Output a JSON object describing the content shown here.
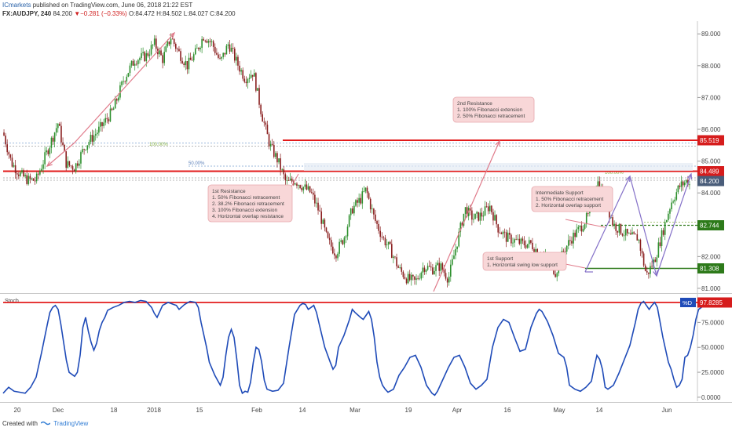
{
  "header": {
    "author": "ICmarkets",
    "published": "published on TradingView.com, June 06, 2018 21:22 EST",
    "symbol": "FX:AUDJPY, 240",
    "last": "84.200",
    "change_symbol": "▼",
    "change": "−0.281 (−0.33%)",
    "ohlc": "O:84.472 H:84.502 L:84.027 C:84.200"
  },
  "footer": {
    "created_with": "Created with",
    "brand": "TradingView"
  },
  "colors": {
    "candle_up": "#2c8f2c",
    "candle_down": "#8a1f1f",
    "resistance_line": "#e21b1b",
    "support_line": "#2d7a1a",
    "stoch_line": "#1f4bb8",
    "fib_text": "#8ab34a",
    "label_bg": "#f8d7d8",
    "arrow_pink": "#e07a8a",
    "arrow_purple": "#8470c8",
    "price_tag_gray": "#4a5d7a",
    "price_tag_red": "#d61c1c",
    "price_tag_green": "#2d7a1a",
    "stoch_tag": "#1f4bb8"
  },
  "chart_data": [
    {
      "type": "candlestick",
      "symbol": "FX:AUDJPY",
      "timeframe": "240",
      "ylim": [
        80.9,
        89.4
      ],
      "y_ticks": [
        81.0,
        82.0,
        83.0,
        84.0,
        85.0,
        86.0,
        87.0,
        88.0,
        89.0
      ],
      "y_tick_labels": [
        "81.000",
        "82.000",
        "83.000",
        "84.000",
        "85.000",
        "86.000",
        "87.000",
        "88.000",
        "89.000"
      ],
      "x_tick_labels": [
        "20",
        "Dec",
        "18",
        "2018",
        "15",
        "Feb",
        "14",
        "Mar",
        "19",
        "Apr",
        "16",
        "May",
        "14",
        "Jun"
      ],
      "close_path": [
        [
          0.0,
          85.9
        ],
        [
          0.03,
          84.95
        ],
        [
          0.06,
          84.6
        ],
        [
          0.09,
          84.4
        ],
        [
          0.12,
          84.4
        ],
        [
          0.16,
          85.3
        ],
        [
          0.2,
          86.2
        ],
        [
          0.23,
          84.9
        ],
        [
          0.26,
          84.8
        ],
        [
          0.3,
          85.5
        ],
        [
          0.35,
          86.0
        ],
        [
          0.4,
          86.6
        ],
        [
          0.44,
          87.6
        ],
        [
          0.48,
          88.2
        ],
        [
          0.52,
          88.3
        ],
        [
          0.55,
          88.7
        ],
        [
          0.58,
          88.2
        ],
        [
          0.61,
          88.9
        ],
        [
          0.64,
          88.4
        ],
        [
          0.67,
          88.0
        ],
        [
          0.7,
          88.4
        ],
        [
          0.73,
          88.95
        ],
        [
          0.76,
          88.7
        ],
        [
          0.79,
          88.1
        ],
        [
          0.82,
          88.7
        ],
        [
          0.85,
          88.1
        ],
        [
          0.88,
          87.6
        ],
        [
          0.91,
          87.8
        ],
        [
          0.94,
          86.5
        ],
        [
          0.97,
          85.5
        ],
        [
          1.0,
          85.0
        ],
        [
          1.03,
          84.3
        ],
        [
          1.06,
          84.4
        ],
        [
          1.09,
          84.2
        ],
        [
          1.12,
          84.0
        ],
        [
          1.15,
          83.4
        ],
        [
          1.18,
          82.5
        ],
        [
          1.21,
          82.1
        ],
        [
          1.24,
          82.6
        ],
        [
          1.27,
          83.5
        ],
        [
          1.3,
          83.8
        ],
        [
          1.32,
          84.1
        ],
        [
          1.35,
          83.2
        ],
        [
          1.38,
          82.6
        ],
        [
          1.41,
          82.2
        ],
        [
          1.44,
          81.6
        ],
        [
          1.47,
          81.3
        ],
        [
          1.5,
          81.2
        ],
        [
          1.53,
          81.7
        ],
        [
          1.56,
          81.6
        ],
        [
          1.59,
          81.7
        ],
        [
          1.62,
          81.3
        ],
        [
          1.65,
          82.4
        ],
        [
          1.68,
          83.5
        ],
        [
          1.71,
          83.2
        ],
        [
          1.74,
          83.3
        ],
        [
          1.77,
          83.6
        ],
        [
          1.8,
          82.9
        ],
        [
          1.83,
          82.6
        ],
        [
          1.86,
          82.5
        ],
        [
          1.89,
          82.4
        ],
        [
          1.92,
          82.4
        ],
        [
          1.95,
          82.1
        ],
        [
          1.98,
          81.9
        ],
        [
          2.01,
          81.5
        ],
        [
          2.04,
          82.2
        ],
        [
          2.07,
          82.6
        ],
        [
          2.1,
          82.9
        ],
        [
          2.13,
          83.3
        ],
        [
          2.16,
          84.4
        ],
        [
          2.19,
          83.8
        ],
        [
          2.22,
          83.0
        ],
        [
          2.25,
          82.8
        ],
        [
          2.28,
          82.6
        ],
        [
          2.31,
          82.6
        ],
        [
          2.34,
          81.4
        ],
        [
          2.37,
          81.9
        ],
        [
          2.4,
          82.8
        ],
        [
          2.43,
          83.7
        ],
        [
          2.46,
          84.2
        ],
        [
          2.49,
          84.4
        ],
        [
          2.5,
          84.2
        ]
      ],
      "levels": [
        {
          "name": "2nd Resistance",
          "price": 85.519,
          "label": "85.519"
        },
        {
          "name": "1st Resistance",
          "price": 84.489,
          "label": "84.489"
        },
        {
          "name": "last price",
          "price": 84.2,
          "label": "84.200"
        },
        {
          "name": "Intermediate Support",
          "price": 82.744,
          "label": "82.744"
        },
        {
          "name": "1st Support",
          "price": 81.308,
          "label": "81.308"
        }
      ],
      "fib_labels": [
        "100.00%",
        "50.00%",
        "100.00%"
      ],
      "annotations": [
        {
          "title": "1st Resistance",
          "lines": [
            "1. 50% Fibonacci retracement",
            "2. 38.2% Fibonacci retracement",
            "3. 100% Fibonacci extension",
            "4. Horizontal overlap resistance"
          ]
        },
        {
          "title": "2nd Resistance",
          "lines": [
            "1. 100% Fibonacci extension",
            "2. 50% Fibonacci retracement"
          ]
        },
        {
          "title": "Intermediate Support",
          "lines": [
            "1. 50% Fibonacci retracement",
            "2. Horizontal overlap support"
          ]
        },
        {
          "title": "1st Support",
          "lines": [
            "1. Horizontal swing low support"
          ]
        }
      ]
    },
    {
      "type": "line",
      "name": "Stoch",
      "series": [
        {
          "name": "%D"
        }
      ],
      "ylim": [
        -4,
        102
      ],
      "y_ticks": [
        0,
        25,
        50,
        75
      ],
      "y_tick_labels": [
        "0.0000",
        "25.0000",
        "50.0000",
        "75.0000"
      ],
      "reference_level": {
        "value": 97.8285,
        "label": "97.8285"
      },
      "points": [
        [
          0.0,
          4
        ],
        [
          0.02,
          10
        ],
        [
          0.04,
          6
        ],
        [
          0.06,
          5
        ],
        [
          0.08,
          4
        ],
        [
          0.1,
          10
        ],
        [
          0.12,
          20
        ],
        [
          0.14,
          45
        ],
        [
          0.16,
          72
        ],
        [
          0.17,
          85
        ],
        [
          0.18,
          90
        ],
        [
          0.19,
          92
        ],
        [
          0.2,
          88
        ],
        [
          0.21,
          73
        ],
        [
          0.22,
          55
        ],
        [
          0.23,
          37
        ],
        [
          0.24,
          25
        ],
        [
          0.26,
          21
        ],
        [
          0.27,
          25
        ],
        [
          0.28,
          42
        ],
        [
          0.29,
          70
        ],
        [
          0.3,
          80
        ],
        [
          0.31,
          66
        ],
        [
          0.32,
          55
        ],
        [
          0.33,
          47
        ],
        [
          0.34,
          54
        ],
        [
          0.35,
          67
        ],
        [
          0.36,
          75
        ],
        [
          0.37,
          80
        ],
        [
          0.38,
          87
        ],
        [
          0.4,
          90
        ],
        [
          0.42,
          92
        ],
        [
          0.44,
          95
        ],
        [
          0.46,
          96
        ],
        [
          0.48,
          95
        ],
        [
          0.5,
          97
        ],
        [
          0.52,
          96
        ],
        [
          0.54,
          90
        ],
        [
          0.55,
          84
        ],
        [
          0.56,
          80
        ],
        [
          0.57,
          86
        ],
        [
          0.58,
          92
        ],
        [
          0.6,
          95
        ],
        [
          0.62,
          93
        ],
        [
          0.63,
          92
        ],
        [
          0.64,
          88
        ],
        [
          0.66,
          93
        ],
        [
          0.68,
          96
        ],
        [
          0.7,
          95
        ],
        [
          0.71,
          90
        ],
        [
          0.72,
          75
        ],
        [
          0.74,
          50
        ],
        [
          0.75,
          35
        ],
        [
          0.77,
          22
        ],
        [
          0.79,
          12
        ],
        [
          0.8,
          20
        ],
        [
          0.81,
          42
        ],
        [
          0.82,
          60
        ],
        [
          0.83,
          68
        ],
        [
          0.84,
          60
        ],
        [
          0.85,
          38
        ],
        [
          0.86,
          12
        ],
        [
          0.87,
          4
        ],
        [
          0.88,
          6
        ],
        [
          0.89,
          5
        ],
        [
          0.9,
          15
        ],
        [
          0.91,
          35
        ],
        [
          0.92,
          50
        ],
        [
          0.93,
          48
        ],
        [
          0.94,
          36
        ],
        [
          0.95,
          17
        ],
        [
          0.96,
          8
        ],
        [
          0.98,
          6
        ],
        [
          1.0,
          7
        ],
        [
          1.02,
          14
        ],
        [
          1.04,
          50
        ],
        [
          1.06,
          83
        ],
        [
          1.08,
          92
        ],
        [
          1.09,
          94
        ],
        [
          1.1,
          93
        ],
        [
          1.11,
          88
        ],
        [
          1.12,
          90
        ],
        [
          1.13,
          92
        ],
        [
          1.14,
          85
        ],
        [
          1.15,
          73
        ],
        [
          1.17,
          50
        ],
        [
          1.19,
          35
        ],
        [
          1.2,
          28
        ],
        [
          1.21,
          32
        ],
        [
          1.22,
          50
        ],
        [
          1.24,
          62
        ],
        [
          1.26,
          78
        ],
        [
          1.27,
          88
        ],
        [
          1.28,
          85
        ],
        [
          1.3,
          80
        ],
        [
          1.31,
          78
        ],
        [
          1.32,
          82
        ],
        [
          1.33,
          86
        ],
        [
          1.34,
          78
        ],
        [
          1.35,
          60
        ],
        [
          1.36,
          35
        ],
        [
          1.37,
          20
        ],
        [
          1.38,
          12
        ],
        [
          1.39,
          8
        ],
        [
          1.4,
          5
        ],
        [
          1.42,
          8
        ],
        [
          1.44,
          22
        ],
        [
          1.46,
          30
        ],
        [
          1.48,
          40
        ],
        [
          1.5,
          42
        ],
        [
          1.52,
          30
        ],
        [
          1.54,
          12
        ],
        [
          1.56,
          4
        ],
        [
          1.57,
          2
        ],
        [
          1.58,
          6
        ],
        [
          1.6,
          18
        ],
        [
          1.62,
          30
        ],
        [
          1.64,
          40
        ],
        [
          1.66,
          42
        ],
        [
          1.68,
          30
        ],
        [
          1.7,
          14
        ],
        [
          1.72,
          8
        ],
        [
          1.74,
          12
        ],
        [
          1.76,
          18
        ],
        [
          1.78,
          50
        ],
        [
          1.8,
          70
        ],
        [
          1.82,
          78
        ],
        [
          1.84,
          75
        ],
        [
          1.86,
          60
        ],
        [
          1.88,
          46
        ],
        [
          1.9,
          48
        ],
        [
          1.92,
          70
        ],
        [
          1.94,
          84
        ],
        [
          1.95,
          88
        ],
        [
          1.96,
          86
        ],
        [
          1.98,
          76
        ],
        [
          2.0,
          62
        ],
        [
          2.02,
          44
        ],
        [
          2.04,
          40
        ],
        [
          2.05,
          30
        ],
        [
          2.06,
          12
        ],
        [
          2.08,
          8
        ],
        [
          2.1,
          6
        ],
        [
          2.12,
          10
        ],
        [
          2.14,
          16
        ],
        [
          2.15,
          30
        ],
        [
          2.16,
          42
        ],
        [
          2.17,
          38
        ],
        [
          2.18,
          28
        ],
        [
          2.19,
          10
        ],
        [
          2.2,
          8
        ],
        [
          2.22,
          12
        ],
        [
          2.24,
          24
        ],
        [
          2.26,
          38
        ],
        [
          2.28,
          52
        ],
        [
          2.3,
          75
        ],
        [
          2.31,
          88
        ],
        [
          2.32,
          94
        ],
        [
          2.33,
          96
        ],
        [
          2.34,
          92
        ],
        [
          2.35,
          88
        ],
        [
          2.36,
          92
        ],
        [
          2.37,
          95
        ],
        [
          2.38,
          90
        ],
        [
          2.4,
          60
        ],
        [
          2.42,
          35
        ],
        [
          2.43,
          28
        ],
        [
          2.44,
          18
        ],
        [
          2.45,
          10
        ],
        [
          2.46,
          12
        ],
        [
          2.47,
          18
        ],
        [
          2.48,
          40
        ],
        [
          2.49,
          42
        ],
        [
          2.5,
          50
        ],
        [
          2.51,
          62
        ],
        [
          2.52,
          78
        ],
        [
          2.53,
          88
        ],
        [
          2.54,
          90
        ],
        [
          2.55,
          96
        ],
        [
          2.56,
          97
        ]
      ]
    }
  ]
}
